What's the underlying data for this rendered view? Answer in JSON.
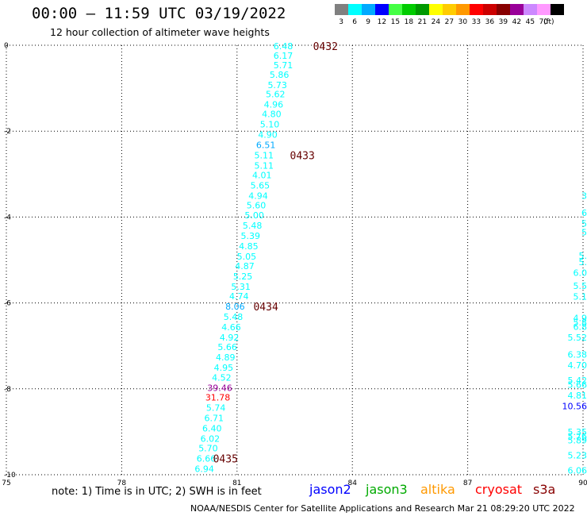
{
  "header": {
    "title": "00:00 – 11:59 UTC 03/19/2022",
    "subtitle": "12 hour collection of altimeter wave heights"
  },
  "legend": {
    "unit": "(ft)",
    "items": [
      {
        "label": "3",
        "color": "#808080"
      },
      {
        "label": "6",
        "color": "#00ffff"
      },
      {
        "label": "9",
        "color": "#00aaff"
      },
      {
        "label": "12",
        "color": "#0000ff"
      },
      {
        "label": "15",
        "color": "#44ff44"
      },
      {
        "label": "18",
        "color": "#00cc00"
      },
      {
        "label": "21",
        "color": "#009900"
      },
      {
        "label": "24",
        "color": "#ffff00"
      },
      {
        "label": "27",
        "color": "#ffcc00"
      },
      {
        "label": "30",
        "color": "#ff9900"
      },
      {
        "label": "33",
        "color": "#ff0000"
      },
      {
        "label": "36",
        "color": "#cc0000"
      },
      {
        "label": "39",
        "color": "#880000"
      },
      {
        "label": "42",
        "color": "#990099"
      },
      {
        "label": "45",
        "color": "#cc88ff"
      },
      {
        "label": "70",
        "color": "#ff99ff"
      },
      {
        "label": "",
        "color": "#000000"
      }
    ]
  },
  "map": {
    "lon_ticks": [
      "75",
      "78",
      "81",
      "84",
      "87",
      "90"
    ],
    "lat_ticks": [
      "0",
      "-2",
      "-4",
      "-6",
      "-8",
      "-10"
    ],
    "lon_range": [
      75,
      90
    ],
    "lat_range": [
      0,
      -10
    ]
  },
  "track_main": [
    {
      "v": "6.48",
      "lon": 82.2,
      "lat": -0.02,
      "c": "#00ffff"
    },
    {
      "v": "6.17",
      "lon": 82.2,
      "lat": -0.24,
      "c": "#00ffff"
    },
    {
      "v": "5.71",
      "lon": 82.2,
      "lat": -0.46,
      "c": "#00ffff"
    },
    {
      "v": "5.86",
      "lon": 82.1,
      "lat": -0.68,
      "c": "#00ffff"
    },
    {
      "v": "5.73",
      "lon": 82.05,
      "lat": -0.92,
      "c": "#00ffff"
    },
    {
      "v": "5.62",
      "lon": 82.0,
      "lat": -1.14,
      "c": "#00ffff"
    },
    {
      "v": "4.96",
      "lon": 81.95,
      "lat": -1.38,
      "c": "#00ffff"
    },
    {
      "v": "4.80",
      "lon": 81.9,
      "lat": -1.6,
      "c": "#00ffff"
    },
    {
      "v": "5.10",
      "lon": 81.85,
      "lat": -1.84,
      "c": "#00ffff"
    },
    {
      "v": "4.90",
      "lon": 81.8,
      "lat": -2.08,
      "c": "#00ffff"
    },
    {
      "v": "6.51",
      "lon": 81.75,
      "lat": -2.32,
      "c": "#00aaff"
    },
    {
      "v": "5.11",
      "lon": 81.7,
      "lat": -2.56,
      "c": "#00ffff"
    },
    {
      "v": "5.11",
      "lon": 81.7,
      "lat": -2.8,
      "c": "#00ffff"
    },
    {
      "v": "4.01",
      "lon": 81.65,
      "lat": -3.02,
      "c": "#00ffff"
    },
    {
      "v": "5.65",
      "lon": 81.6,
      "lat": -3.26,
      "c": "#00ffff"
    },
    {
      "v": "4.94",
      "lon": 81.55,
      "lat": -3.5,
      "c": "#00ffff"
    },
    {
      "v": "5.60",
      "lon": 81.5,
      "lat": -3.72,
      "c": "#00ffff"
    },
    {
      "v": "5.00",
      "lon": 81.45,
      "lat": -3.96,
      "c": "#00ffff"
    },
    {
      "v": "5.48",
      "lon": 81.4,
      "lat": -4.2,
      "c": "#00ffff"
    },
    {
      "v": "5.39",
      "lon": 81.35,
      "lat": -4.44,
      "c": "#00ffff"
    },
    {
      "v": "4.85",
      "lon": 81.3,
      "lat": -4.68,
      "c": "#00ffff"
    },
    {
      "v": "5.05",
      "lon": 81.25,
      "lat": -4.92,
      "c": "#00ffff"
    },
    {
      "v": "4.87",
      "lon": 81.2,
      "lat": -5.14,
      "c": "#00ffff"
    },
    {
      "v": "5.25",
      "lon": 81.15,
      "lat": -5.38,
      "c": "#00ffff"
    },
    {
      "v": "5.31",
      "lon": 81.1,
      "lat": -5.62,
      "c": "#00ffff"
    },
    {
      "v": "4.74",
      "lon": 81.05,
      "lat": -5.84,
      "c": "#00ffff"
    },
    {
      "v": "8.06",
      "lon": 80.95,
      "lat": -6.08,
      "c": "#00aaff"
    },
    {
      "v": "5.48",
      "lon": 80.9,
      "lat": -6.32,
      "c": "#00ffff"
    },
    {
      "v": "4.66",
      "lon": 80.85,
      "lat": -6.56,
      "c": "#00ffff"
    },
    {
      "v": "4.92",
      "lon": 80.8,
      "lat": -6.8,
      "c": "#00ffff"
    },
    {
      "v": "5.66",
      "lon": 80.75,
      "lat": -7.02,
      "c": "#00ffff"
    },
    {
      "v": "4.89",
      "lon": 80.7,
      "lat": -7.26,
      "c": "#00ffff"
    },
    {
      "v": "4.95",
      "lon": 80.65,
      "lat": -7.5,
      "c": "#00ffff"
    },
    {
      "v": "4.52",
      "lon": 80.6,
      "lat": -7.74,
      "c": "#00ffff"
    },
    {
      "v": "39.46",
      "lon": 80.55,
      "lat": -7.98,
      "c": "#990099"
    },
    {
      "v": "31.78",
      "lon": 80.5,
      "lat": -8.2,
      "c": "#ff0000"
    },
    {
      "v": "5.74",
      "lon": 80.45,
      "lat": -8.44,
      "c": "#00ffff"
    },
    {
      "v": "6.71",
      "lon": 80.4,
      "lat": -8.68,
      "c": "#00ffff"
    },
    {
      "v": "6.40",
      "lon": 80.35,
      "lat": -8.92,
      "c": "#00ffff"
    },
    {
      "v": "6.02",
      "lon": 80.3,
      "lat": -9.16,
      "c": "#00ffff"
    },
    {
      "v": "5.70",
      "lon": 80.25,
      "lat": -9.38,
      "c": "#00ffff"
    },
    {
      "v": "6.66",
      "lon": 80.2,
      "lat": -9.62,
      "c": "#00ffff"
    },
    {
      "v": "6.94",
      "lon": 80.15,
      "lat": -9.86,
      "c": "#00ffff"
    }
  ],
  "time_labels": [
    {
      "v": "0432",
      "lon": 83.3,
      "lat": -0.02
    },
    {
      "v": "0433",
      "lon": 82.7,
      "lat": -2.56
    },
    {
      "v": "0434",
      "lon": 81.75,
      "lat": -6.08
    },
    {
      "v": "0435",
      "lon": 80.7,
      "lat": -9.62
    }
  ],
  "track_edge": [
    {
      "v": "3",
      "lat": -3.5,
      "c": "#00ffff"
    },
    {
      "v": "6",
      "lat": -3.9,
      "c": "#00ffff"
    },
    {
      "v": "5",
      "lat": -4.15,
      "c": "#00ffff"
    },
    {
      "v": "5",
      "lat": -4.35,
      "c": "#00ffff"
    },
    {
      "v": "5.",
      "lat": -4.9,
      "c": "#00ffff"
    },
    {
      "v": "5.",
      "lat": -5.05,
      "c": "#00ffff"
    },
    {
      "v": "6.0",
      "lat": -5.3,
      "c": "#00ffff"
    },
    {
      "v": "5.5",
      "lat": -5.6,
      "c": "#00ffff"
    },
    {
      "v": "5.1",
      "lat": -5.85,
      "c": "#00ffff"
    },
    {
      "v": "4.9",
      "lat": -6.35,
      "c": "#00ffff"
    },
    {
      "v": "5.8",
      "lat": -6.45,
      "c": "#00ffff"
    },
    {
      "v": "6.8",
      "lat": -6.55,
      "c": "#00ffff"
    },
    {
      "v": "5.52",
      "lat": -6.8,
      "c": "#00ffff"
    },
    {
      "v": "6.38",
      "lat": -7.2,
      "c": "#00ffff"
    },
    {
      "v": "4.70",
      "lat": -7.45,
      "c": "#00ffff"
    },
    {
      "v": "5.42",
      "lat": -7.8,
      "c": "#00ffff"
    },
    {
      "v": "5.66",
      "lat": -7.9,
      "c": "#00ffff"
    },
    {
      "v": "4.81",
      "lat": -8.15,
      "c": "#00ffff"
    },
    {
      "v": "10.56",
      "lat": -8.4,
      "c": "#0000ff"
    },
    {
      "v": "5.35",
      "lat": -9.0,
      "c": "#00ffff"
    },
    {
      "v": "5.76",
      "lat": -9.1,
      "c": "#00ffff"
    },
    {
      "v": "5.89",
      "lat": -9.2,
      "c": "#00ffff"
    },
    {
      "v": "5.23",
      "lat": -9.55,
      "c": "#00ffff"
    },
    {
      "v": "6.06",
      "lat": -9.9,
      "c": "#00ffff"
    }
  ],
  "footer": {
    "note": "note:  1) Time is in UTC;  2) SWH is in feet",
    "satellites": [
      {
        "name": "jason2",
        "color": "#0000ff"
      },
      {
        "name": "jason3",
        "color": "#00aa00"
      },
      {
        "name": "altika",
        "color": "#ff9900"
      },
      {
        "name": "cryosat",
        "color": "#ff0000"
      },
      {
        "name": "s3a",
        "color": "#880000"
      }
    ],
    "credit": "NOAA/NESDIS Center for Satellite Applications and Research     Mar 21 08:29:20 UTC 2022"
  }
}
